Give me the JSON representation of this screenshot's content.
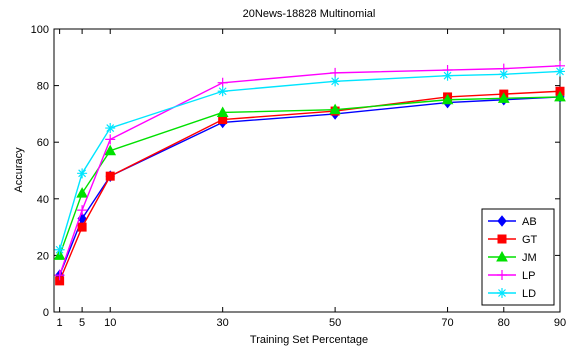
{
  "chart_data": {
    "type": "line",
    "title": "20News-18828 Multinomial",
    "xlabel": "Training Set Percentage",
    "ylabel": "Accuracy",
    "x": [
      1,
      5,
      10,
      30,
      50,
      70,
      80,
      90
    ],
    "xticks": [
      "1",
      "5",
      "10",
      "30",
      "50",
      "70",
      "80",
      "90"
    ],
    "yticks": [
      "0",
      "20",
      "40",
      "60",
      "80",
      "100"
    ],
    "xlim": [
      0,
      90
    ],
    "ylim": [
      0,
      100
    ],
    "grid": false,
    "legend_position": "bottom-right",
    "series": [
      {
        "name": "AB",
        "color": "#0000ff",
        "marker": "diamond",
        "values": [
          13,
          33,
          48,
          67,
          70,
          74,
          75,
          76
        ]
      },
      {
        "name": "GT",
        "color": "#ff0000",
        "marker": "square",
        "values": [
          11,
          30,
          48,
          68,
          71,
          76,
          77,
          78
        ]
      },
      {
        "name": "JM",
        "color": "#00e000",
        "marker": "triangle",
        "values": [
          20,
          42,
          57,
          70.5,
          71.5,
          75,
          75.5,
          76
        ]
      },
      {
        "name": "LP",
        "color": "#ff00ff",
        "marker": "plus",
        "values": [
          13,
          36,
          61,
          81,
          84.5,
          85.5,
          86,
          87
        ]
      },
      {
        "name": "LD",
        "color": "#00e5ff",
        "marker": "star",
        "values": [
          22,
          49,
          65,
          78,
          81.5,
          83.5,
          84,
          85
        ]
      }
    ]
  }
}
